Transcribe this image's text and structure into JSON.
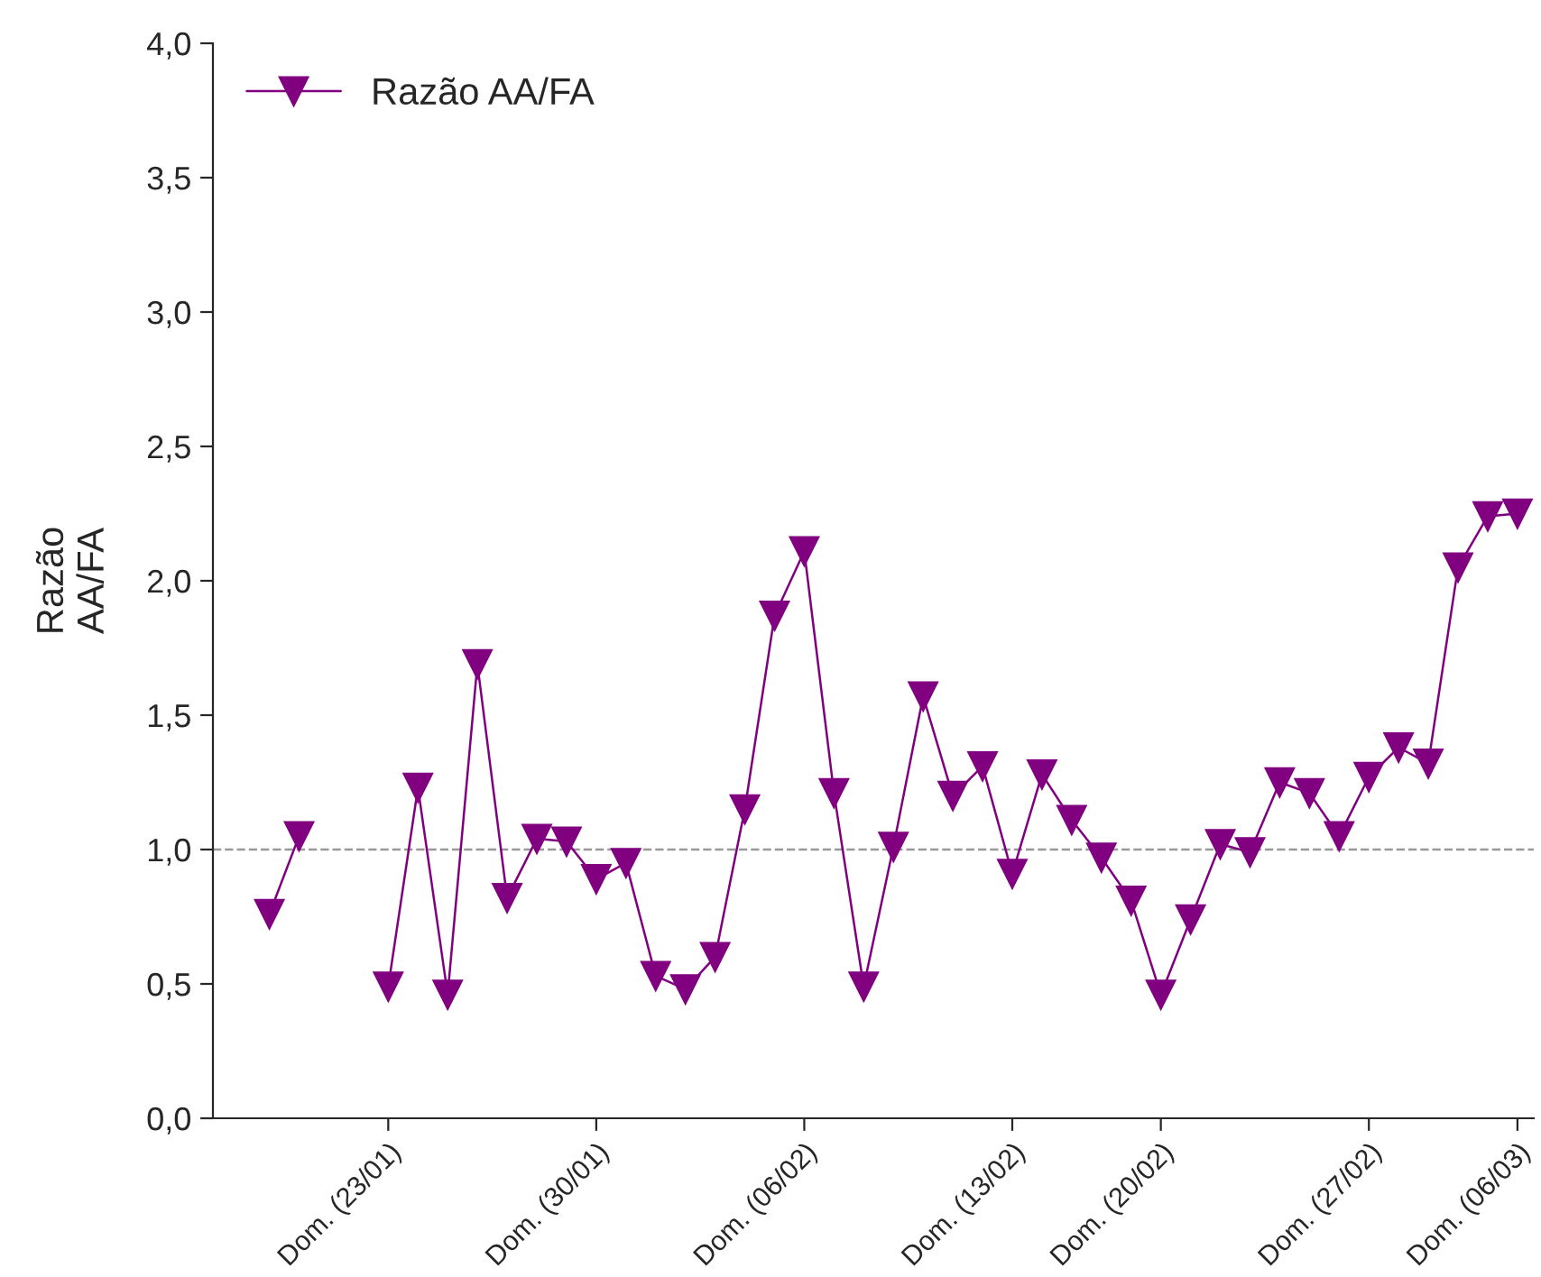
{
  "chart_data": {
    "type": "line",
    "ylabel": "Razão\nAA/FA",
    "categories": [
      null,
      null,
      null,
      null,
      "Dom. (23/01)",
      null,
      null,
      null,
      null,
      null,
      null,
      "Dom. (30/01)",
      null,
      null,
      null,
      null,
      null,
      null,
      "Dom. (06/02)",
      null,
      null,
      null,
      null,
      null,
      null,
      "Dom. (13/02)",
      null,
      null,
      null,
      null,
      "Dom. (20/02)",
      null,
      null,
      null,
      null,
      null,
      null,
      "Dom. (27/02)",
      null,
      null,
      null,
      null,
      "Dom. (06/03)"
    ],
    "series": [
      {
        "name": "Razão AA/FA",
        "color": "#800080",
        "values": [
          0.76,
          1.05,
          null,
          null,
          0.49,
          1.23,
          0.46,
          1.69,
          0.82,
          1.04,
          1.03,
          0.89,
          0.95,
          0.53,
          0.48,
          0.6,
          1.15,
          1.87,
          2.11,
          1.21,
          0.49,
          1.01,
          1.57,
          1.2,
          1.31,
          0.91,
          1.28,
          1.11,
          0.97,
          0.81,
          0.46,
          0.74,
          1.02,
          0.99,
          1.25,
          1.21,
          1.05,
          1.27,
          1.38,
          1.32,
          2.05,
          2.24,
          2.25
        ]
      }
    ],
    "ylim": [
      0,
      4
    ],
    "yticks": [
      {
        "value": 0,
        "label": "0,0"
      },
      {
        "value": 0.5,
        "label": "0,5"
      },
      {
        "value": 1,
        "label": "1,0"
      },
      {
        "value": 1.5,
        "label": "1,5"
      },
      {
        "value": 2,
        "label": "2,0"
      },
      {
        "value": 2.5,
        "label": "2,5"
      },
      {
        "value": 3,
        "label": "3,0"
      },
      {
        "value": 3.5,
        "label": "3,5"
      },
      {
        "value": 4,
        "label": "4,0"
      }
    ],
    "ref_lines": [
      {
        "axis": "y",
        "value": 1,
        "color": "#999999",
        "line_style": "dashed"
      }
    ],
    "marker": "triangle",
    "line_style": "solid",
    "legend": "top left",
    "grid": false
  }
}
